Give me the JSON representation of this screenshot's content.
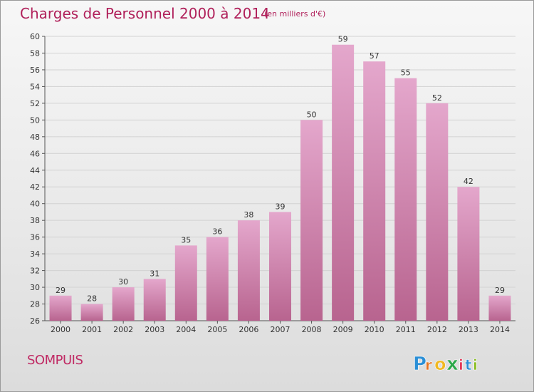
{
  "title": "Charges de Personnel 2000 à 2014",
  "subtitle": "(en milliers d'€)",
  "commune": "SOMPUIS",
  "logo": {
    "text": "Proxiti",
    "letters": [
      "P",
      "r",
      "o",
      "x",
      "i",
      "t",
      "i"
    ],
    "colors": [
      "#2b8fd6",
      "#e8731f",
      "#f0b820",
      "#2ba84a",
      "#e23b5a",
      "#2b8fd6",
      "#8bbf26"
    ]
  },
  "colors": {
    "bar_top": "#e4a7cc",
    "bar_bottom": "#b8648f",
    "title": "#b0205a"
  },
  "chart_data": {
    "type": "bar",
    "title": "Charges de Personnel 2000 à 2014",
    "subtitle": "(en milliers d'€)",
    "categories": [
      "2000",
      "2001",
      "2002",
      "2003",
      "2004",
      "2005",
      "2006",
      "2007",
      "2008",
      "2009",
      "2010",
      "2011",
      "2012",
      "2013",
      "2014"
    ],
    "values": [
      29,
      28,
      30,
      31,
      35,
      36,
      38,
      39,
      50,
      59,
      57,
      55,
      52,
      42,
      29
    ],
    "ylim": [
      26,
      60
    ],
    "yticks": [
      26,
      28,
      30,
      32,
      34,
      36,
      38,
      40,
      42,
      44,
      46,
      48,
      50,
      52,
      54,
      56,
      58,
      60
    ],
    "grid": true,
    "legend": "none"
  }
}
